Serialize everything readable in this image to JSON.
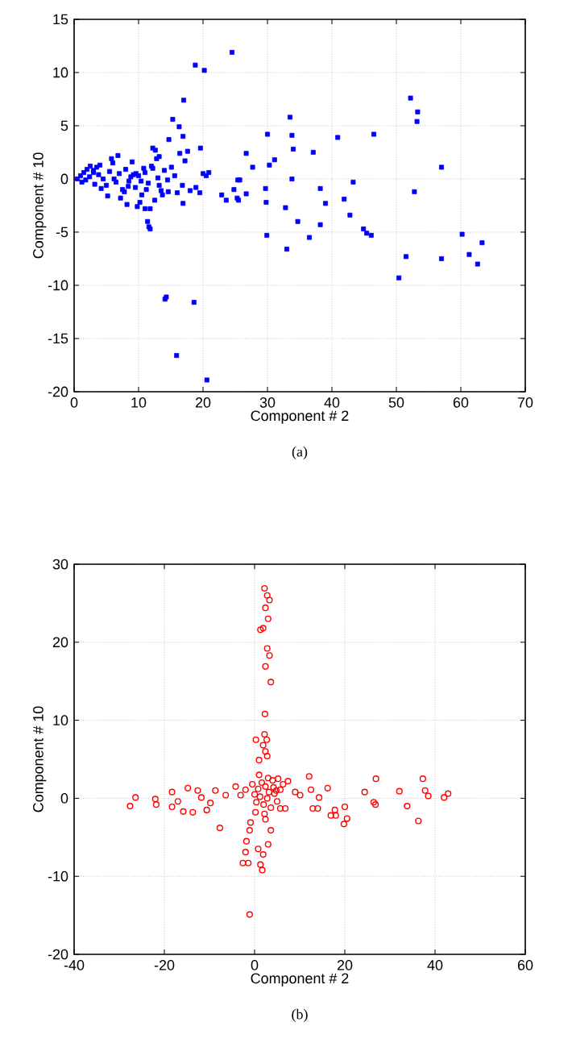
{
  "chart_data": [
    {
      "type": "scatter",
      "xlabel": "Component # 2",
      "ylabel": "Component # 10",
      "annotations": [
        "(a)"
      ],
      "xlim": [
        0,
        70
      ],
      "ylim": [
        -20,
        15
      ],
      "xticks": [
        0,
        10,
        20,
        30,
        40,
        50,
        60,
        70
      ],
      "yticks": [
        -20,
        -15,
        -10,
        -5,
        0,
        5,
        10,
        15
      ],
      "grid": true,
      "marker": "square",
      "series": [
        {
          "color": "#0000ff",
          "x": [
            24.5,
            18.8,
            20.2,
            17.0,
            15.3,
            16.3,
            16.9,
            14.7,
            17.6,
            19.6,
            16.4,
            12.2,
            12.6,
            13.2,
            17.2,
            15.1,
            14.5,
            16.0,
            16.9,
            13.7,
            11.0,
            11.8,
            11.4,
            11.6,
            11.8,
            14.1,
            14.3,
            18.6,
            15.9,
            20.6,
            20.0,
            20.5,
            20.9,
            18.9,
            19.5,
            22.9,
            23.6,
            24.8,
            25.4,
            25.7,
            26.7,
            26.7,
            25.5,
            25.3,
            27.7,
            29.7,
            30.3,
            31.1,
            30.0,
            29.8,
            29.9,
            33.5,
            33.8,
            34.0,
            37.1,
            33.8,
            32.8,
            34.7,
            33.0,
            36.5,
            38.2,
            39.0,
            38.2,
            40.9,
            46.5,
            43.3,
            41.9,
            42.8,
            44.9,
            45.4,
            46.1,
            52.2,
            53.3,
            53.2,
            57.0,
            52.8,
            51.5,
            50.4,
            57.0,
            60.2,
            61.3,
            63.3,
            62.6,
            0.5,
            1.0,
            1.5,
            2.0,
            2.5,
            3.0,
            3.5,
            4.0,
            1.2,
            1.8,
            2.4,
            3.2,
            3.8,
            4.5,
            5.0,
            5.5,
            6.0,
            6.5,
            7.0,
            7.5,
            8.0,
            8.5,
            9.0,
            9.5,
            10.0,
            10.5,
            11.0,
            11.5,
            12.0,
            12.5,
            13.0,
            13.5,
            14.0,
            5.2,
            6.2,
            7.2,
            8.2,
            9.2,
            10.2,
            11.2,
            12.2,
            13.2,
            6.8,
            7.8,
            8.8,
            9.8,
            10.8,
            3.0,
            4.2,
            5.8,
            8.4,
            9.6,
            10.4,
            12.8,
            14.6,
            15.6,
            16.8,
            18.0
          ],
          "values": [
            11.9,
            10.7,
            10.2,
            7.4,
            5.6,
            4.9,
            4.0,
            3.7,
            2.6,
            2.9,
            2.4,
            2.9,
            2.7,
            2.1,
            1.7,
            1.1,
            -0.1,
            -1.3,
            -2.3,
            -1.5,
            -2.8,
            -2.8,
            -4.0,
            -4.5,
            -4.7,
            -11.3,
            -11.1,
            -11.6,
            -16.6,
            -18.9,
            0.5,
            0.3,
            0.6,
            -0.8,
            -1.3,
            -1.5,
            -2.0,
            -1.0,
            -0.1,
            -0.1,
            2.4,
            -1.4,
            -2.0,
            -1.8,
            1.1,
            -0.9,
            1.3,
            1.8,
            4.2,
            -2.2,
            -5.3,
            5.8,
            4.1,
            2.8,
            2.5,
            0.0,
            -2.7,
            -4.0,
            -6.6,
            -5.5,
            -0.9,
            -2.3,
            -4.3,
            3.9,
            4.2,
            -0.3,
            -1.9,
            -3.4,
            -4.7,
            -5.1,
            -5.3,
            7.6,
            6.3,
            5.4,
            1.1,
            -1.2,
            -7.3,
            -9.3,
            -7.5,
            -5.2,
            -7.1,
            -6.0,
            -8.0,
            0.0,
            0.3,
            0.6,
            0.9,
            1.2,
            0.8,
            1.1,
            1.3,
            -0.3,
            -0.1,
            0.2,
            -0.5,
            0.4,
            0.0,
            -0.6,
            0.7,
            1.5,
            -0.3,
            0.5,
            -1.0,
            0.9,
            -0.2,
            1.6,
            -0.8,
            0.3,
            -1.5,
            0.6,
            -0.4,
            1.2,
            -2.0,
            0.1,
            -1.1,
            0.8,
            -1.6,
            0.0,
            -1.8,
            -2.4,
            0.4,
            -2.2,
            -1.0,
            1.0,
            -0.6,
            2.2,
            -1.2,
            0.2,
            -2.6,
            1.0,
            0.6,
            -0.9,
            1.9,
            -0.7,
            0.5,
            -0.2,
            1.9,
            -1.2,
            0.3,
            -0.6,
            -1.1
          ]
        }
      ]
    },
    {
      "type": "scatter",
      "xlabel": "Component # 2",
      "ylabel": "Component # 10",
      "annotations": [
        "(b)"
      ],
      "xlim": [
        -40,
        60
      ],
      "ylim": [
        -20,
        30
      ],
      "xticks": [
        -40,
        -20,
        0,
        20,
        40,
        60
      ],
      "yticks": [
        -20,
        -10,
        0,
        10,
        20,
        30
      ],
      "grid": true,
      "marker": "circle",
      "series": [
        {
          "color": "#ff0000",
          "x": [
            2.2,
            2.8,
            3.3,
            2.4,
            3.0,
            1.9,
            1.3,
            2.8,
            3.3,
            2.4,
            3.6,
            2.3,
            2.2,
            2.7,
            0.3,
            1.9,
            2.4,
            1.0,
            2.8,
            -27.6,
            -26.4,
            -22.0,
            -21.8,
            -18.3,
            -18.3,
            -17.0,
            -15.8,
            -14.8,
            -13.7,
            -12.6,
            -11.8,
            -10.6,
            -9.8,
            -8.7,
            -7.7,
            -6.4,
            -4.2,
            -3.1,
            -2.0,
            -0.9,
            -1.1,
            -1.8,
            -2.0,
            -2.6,
            -1.4,
            0.8,
            1.9,
            1.7,
            1.3,
            3.0,
            3.6,
            2.4,
            -1.1,
            5.2,
            6.3,
            7.4,
            5.7,
            9.0,
            10.1,
            6.8,
            5.7,
            12.1,
            12.5,
            12.9,
            14.0,
            14.3,
            16.2,
            16.9,
            18.0,
            17.8,
            20.0,
            20.5,
            19.8,
            24.4,
            26.4,
            26.8,
            26.9,
            32.1,
            33.8,
            36.3,
            37.3,
            37.8,
            38.5,
            42.0,
            42.9,
            0.0,
            0.8,
            1.6,
            2.4,
            3.2,
            4.0,
            4.8,
            0.4,
            1.2,
            2.0,
            2.8,
            3.6,
            4.4,
            -0.5,
            1.0,
            3.0,
            5.0,
            0.2,
            2.2,
            4.2
          ],
          "values": [
            26.9,
            26.0,
            25.4,
            24.4,
            23.0,
            21.8,
            21.6,
            19.2,
            18.3,
            16.9,
            14.9,
            10.8,
            8.2,
            7.5,
            7.5,
            6.8,
            6.0,
            4.9,
            5.4,
            -1.0,
            0.1,
            -0.1,
            -0.8,
            0.8,
            -1.1,
            -0.4,
            -1.7,
            1.3,
            -1.8,
            1.0,
            0.1,
            -1.5,
            -0.6,
            1.0,
            -3.8,
            0.4,
            1.5,
            0.4,
            1.1,
            -3.1,
            -4.1,
            -5.5,
            -6.9,
            -8.3,
            -8.3,
            -6.5,
            -7.2,
            -9.2,
            -8.5,
            -5.9,
            -4.1,
            -2.7,
            -14.9,
            2.5,
            1.8,
            2.2,
            1.1,
            0.8,
            0.4,
            -1.3,
            -1.3,
            2.8,
            1.1,
            -1.3,
            -1.3,
            0.1,
            1.3,
            -2.2,
            -2.2,
            -1.5,
            -1.1,
            -2.6,
            -3.3,
            0.8,
            -0.5,
            -0.8,
            2.5,
            0.9,
            -1.0,
            -2.9,
            2.5,
            1.0,
            0.3,
            0.1,
            0.6,
            0.5,
            1.2,
            2.0,
            1.5,
            0.8,
            2.3,
            1.0,
            -0.5,
            0.2,
            -0.8,
            0.0,
            -1.2,
            0.6,
            1.8,
            3.0,
            2.6,
            -0.4,
            -1.8,
            -2.0,
            1.4
          ]
        }
      ]
    }
  ]
}
